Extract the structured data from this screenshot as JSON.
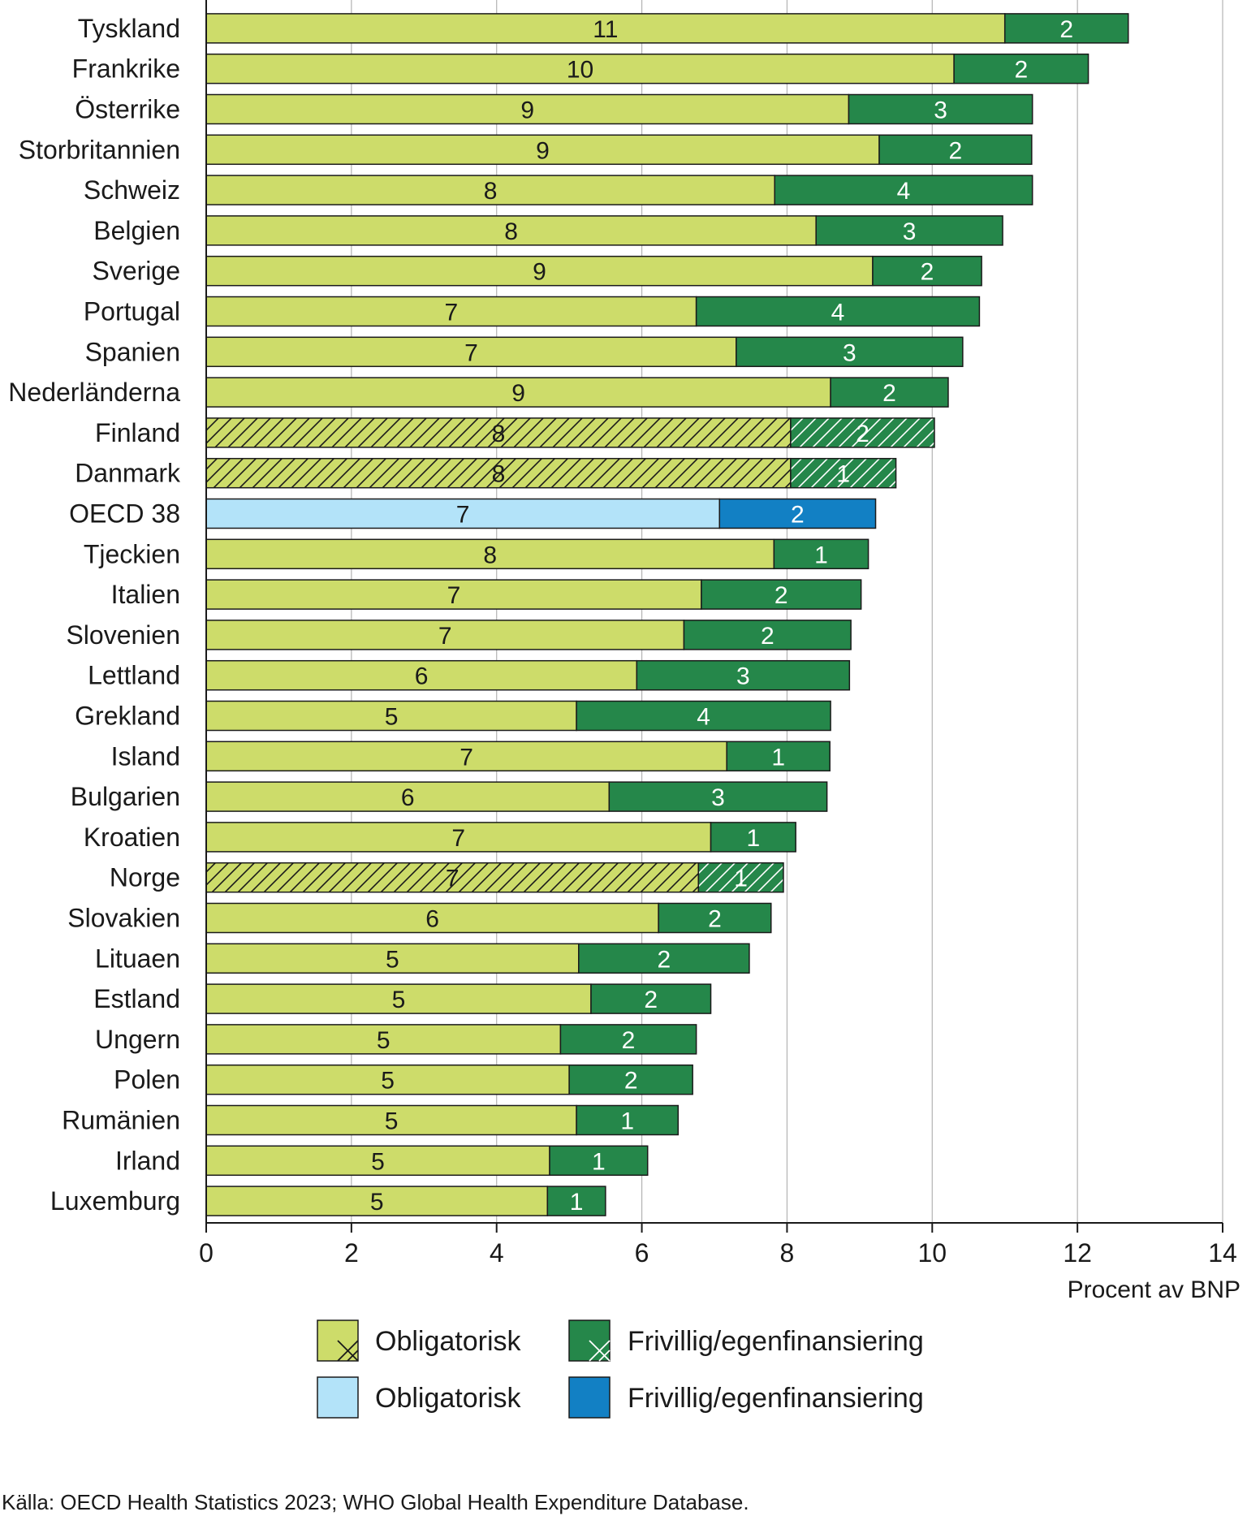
{
  "chart_data": {
    "type": "bar",
    "orientation": "horizontal",
    "stacked": true,
    "xlabel": "Procent av BNP",
    "xlim": [
      0,
      14
    ],
    "xticks": [
      0,
      2,
      4,
      6,
      8,
      10,
      12,
      14
    ],
    "grid": true,
    "categories": [
      "Tyskland",
      "Frankrike",
      "Österrike",
      "Storbritannien",
      "Schweiz",
      "Belgien",
      "Sverige",
      "Portugal",
      "Spanien",
      "Nederländerna",
      "Finland",
      "Danmark",
      "OECD 38",
      "Tjeckien",
      "Italien",
      "Slovenien",
      "Lettland",
      "Grekland",
      "Island",
      "Bulgarien",
      "Kroatien",
      "Norge",
      "Slovakien",
      "Lituaen",
      "Estland",
      "Ungern",
      "Polen",
      "Rumänien",
      "Irland",
      "Luxemburg"
    ],
    "series": [
      {
        "name": "Obligatorisk",
        "values": [
          11.0,
          10.3,
          8.85,
          9.27,
          7.83,
          8.4,
          9.18,
          6.75,
          7.3,
          8.6,
          8.05,
          8.05,
          7.07,
          7.82,
          6.82,
          6.58,
          5.93,
          5.1,
          7.17,
          5.55,
          6.95,
          6.78,
          6.23,
          5.13,
          5.3,
          4.88,
          5.0,
          5.1,
          4.73,
          4.7
        ],
        "labels": [
          "11",
          "10",
          "9",
          "9",
          "8",
          "8",
          "9",
          "7",
          "7",
          "9",
          "8",
          "8",
          "7",
          "8",
          "7",
          "7",
          "6",
          "5",
          "7",
          "6",
          "7",
          "7",
          "6",
          "5",
          "5",
          "5",
          "5",
          "5",
          "5",
          "5"
        ]
      },
      {
        "name": "Frivillig/egenfinansiering",
        "values": [
          1.7,
          1.85,
          2.53,
          2.1,
          3.55,
          2.57,
          1.5,
          3.9,
          3.12,
          1.62,
          1.98,
          1.45,
          2.15,
          1.3,
          2.2,
          2.3,
          2.93,
          3.5,
          1.42,
          3.0,
          1.17,
          1.17,
          1.55,
          2.35,
          1.65,
          1.87,
          1.7,
          1.4,
          1.35,
          0.8
        ],
        "labels": [
          "2",
          "2",
          "3",
          "2",
          "4",
          "3",
          "2",
          "4",
          "3",
          "2",
          "2",
          "1",
          "2",
          "1",
          "2",
          "2",
          "3",
          "4",
          "1",
          "3",
          "1",
          "1",
          "2",
          "2",
          "2",
          "2",
          "2",
          "1",
          "1",
          "1"
        ]
      }
    ],
    "hatched_categories": [
      "Finland",
      "Danmark",
      "Norge"
    ],
    "highlight_category": "OECD 38",
    "legend": [
      {
        "label": "Obligatorisk",
        "style": "hatched-light"
      },
      {
        "label": "Frivillig/egenfinansiering",
        "style": "hatched-dark"
      },
      {
        "label": "Obligatorisk",
        "style": "blue-light"
      },
      {
        "label": "Frivillig/egenfinansiering",
        "style": "blue-dark"
      }
    ]
  },
  "colors": {
    "compulsory": "#cddc6a",
    "voluntary": "#25874a",
    "oecd_compulsory": "#b3e3f9",
    "oecd_voluntary": "#1280c4",
    "grid": "#b3b3b3",
    "stroke": "#1a1a1a"
  },
  "source": "Källa: OECD Health Statistics 2023; WHO Global Health Expenditure Database."
}
